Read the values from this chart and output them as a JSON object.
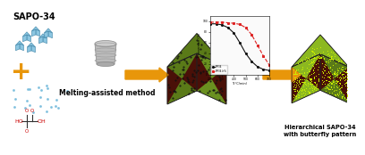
{
  "title": "SAPO-34",
  "label_melting": "Melting-assisted method",
  "label_hierarchical": "Hierarchical SAPO-34\nwith butterfly pattern",
  "arrow_color": "#E8960A",
  "cube_green": "#5A7A18",
  "cube_dark": "#4A1008",
  "cube_green_bright": "#8CB820",
  "cube_right_green": "#6A9020",
  "crystal_blue": "#78BCDC",
  "oxalic_red": "#CC0000",
  "bg_color": "#FFFFFF",
  "line1_color": "#111111",
  "line2_color": "#DD2222",
  "plus_color": "#E8960A",
  "dot_color": "#111111",
  "mill_color": "#AAAAAA"
}
